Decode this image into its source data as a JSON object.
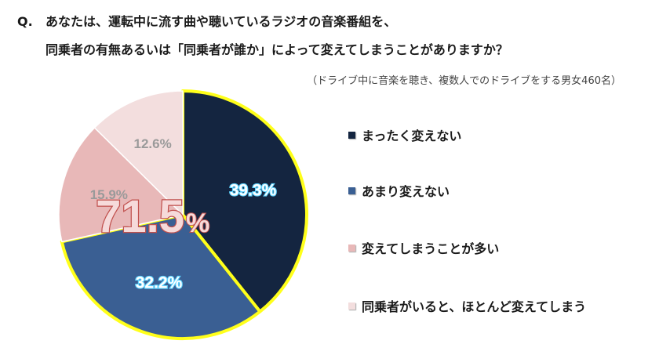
{
  "question": {
    "prefix": "Q.",
    "line1": "あなたは、運転中に流す曲や聴いているラジオの音楽番組を、",
    "line2": "同乗者の有無あるいは「同乗者が誰か」によって変えてしまうことがありますか？",
    "note": "（ドライブ中に音楽を聴き、複数人でのドライブをする男女460名）"
  },
  "chart_data": {
    "type": "pie",
    "categories": [
      "まったく変えない",
      "あまり変えない",
      "変えてしまうことが多い",
      "同乗者がいると、ほとんど変えてしまう"
    ],
    "values": [
      39.3,
      32.2,
      15.9,
      12.6
    ],
    "labels": [
      "39.3%",
      "32.2%",
      "15.9%",
      "12.6%"
    ],
    "colors": [
      "#142540",
      "#3a5f93",
      "#e8b8b8",
      "#f3dede"
    ],
    "highlight_total": {
      "number": "71.5",
      "unit": "%",
      "includes": [
        "まったく変えない",
        "あまり変えない"
      ],
      "outline_color": "#ffff1a"
    },
    "legend_position": "right"
  }
}
